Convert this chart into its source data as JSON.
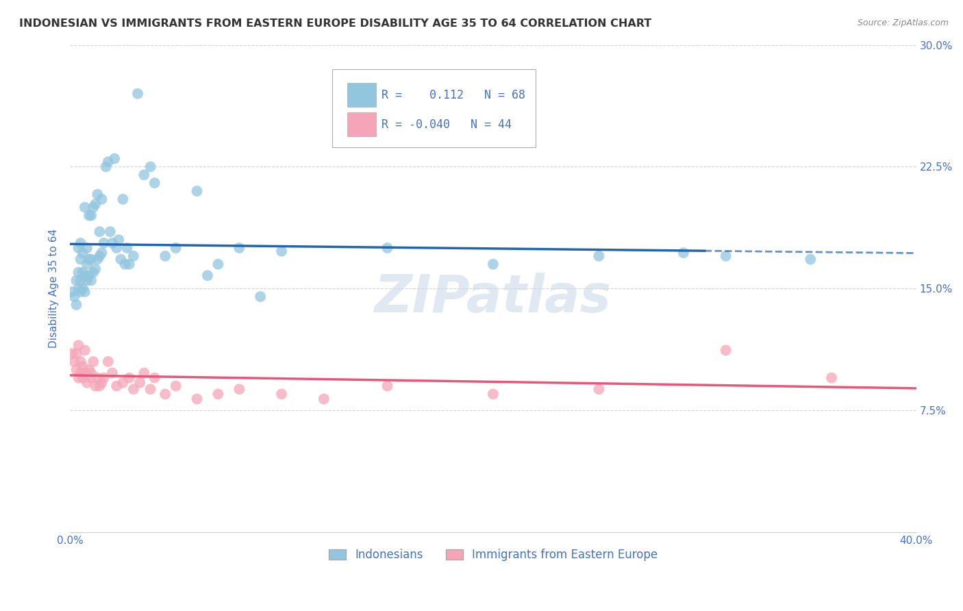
{
  "title": "INDONESIAN VS IMMIGRANTS FROM EASTERN EUROPE DISABILITY AGE 35 TO 64 CORRELATION CHART",
  "source": "Source: ZipAtlas.com",
  "ylabel": "Disability Age 35 to 64",
  "x_min": 0.0,
  "x_max": 0.4,
  "y_min": 0.0,
  "y_max": 0.3,
  "blue_R": 0.112,
  "blue_N": 68,
  "pink_R": -0.04,
  "pink_N": 44,
  "blue_color": "#92c5de",
  "pink_color": "#f4a6b8",
  "blue_line_color": "#2166ac",
  "pink_line_color": "#e8567a",
  "legend_label_blue": "Indonesians",
  "legend_label_pink": "Immigrants from Eastern Europe",
  "blue_x": [
    0.001,
    0.002,
    0.003,
    0.003,
    0.004,
    0.004,
    0.004,
    0.005,
    0.005,
    0.005,
    0.005,
    0.006,
    0.006,
    0.006,
    0.007,
    0.007,
    0.007,
    0.008,
    0.008,
    0.008,
    0.009,
    0.009,
    0.009,
    0.01,
    0.01,
    0.01,
    0.011,
    0.011,
    0.012,
    0.012,
    0.013,
    0.013,
    0.014,
    0.014,
    0.015,
    0.015,
    0.016,
    0.017,
    0.018,
    0.019,
    0.02,
    0.021,
    0.022,
    0.023,
    0.024,
    0.025,
    0.026,
    0.027,
    0.028,
    0.03,
    0.032,
    0.035,
    0.038,
    0.04,
    0.045,
    0.05,
    0.06,
    0.065,
    0.07,
    0.08,
    0.09,
    0.1,
    0.15,
    0.2,
    0.25,
    0.29,
    0.31,
    0.35
  ],
  "blue_y": [
    0.148,
    0.145,
    0.14,
    0.155,
    0.15,
    0.16,
    0.175,
    0.148,
    0.155,
    0.168,
    0.178,
    0.15,
    0.16,
    0.172,
    0.148,
    0.158,
    0.2,
    0.155,
    0.165,
    0.175,
    0.158,
    0.168,
    0.195,
    0.155,
    0.168,
    0.195,
    0.16,
    0.2,
    0.162,
    0.202,
    0.168,
    0.208,
    0.17,
    0.185,
    0.172,
    0.205,
    0.178,
    0.225,
    0.228,
    0.185,
    0.178,
    0.23,
    0.175,
    0.18,
    0.168,
    0.205,
    0.165,
    0.175,
    0.165,
    0.17,
    0.27,
    0.22,
    0.225,
    0.215,
    0.17,
    0.175,
    0.21,
    0.158,
    0.165,
    0.175,
    0.145,
    0.173,
    0.175,
    0.165,
    0.17,
    0.172,
    0.17,
    0.168
  ],
  "pink_x": [
    0.001,
    0.002,
    0.003,
    0.003,
    0.004,
    0.004,
    0.005,
    0.005,
    0.006,
    0.006,
    0.007,
    0.007,
    0.008,
    0.009,
    0.01,
    0.01,
    0.011,
    0.012,
    0.013,
    0.014,
    0.015,
    0.016,
    0.018,
    0.02,
    0.022,
    0.025,
    0.028,
    0.03,
    0.033,
    0.035,
    0.038,
    0.04,
    0.045,
    0.05,
    0.06,
    0.07,
    0.08,
    0.1,
    0.12,
    0.15,
    0.2,
    0.25,
    0.31,
    0.36
  ],
  "pink_y": [
    0.11,
    0.105,
    0.11,
    0.1,
    0.115,
    0.095,
    0.105,
    0.098,
    0.102,
    0.095,
    0.098,
    0.112,
    0.092,
    0.1,
    0.095,
    0.098,
    0.105,
    0.09,
    0.095,
    0.09,
    0.092,
    0.095,
    0.105,
    0.098,
    0.09,
    0.092,
    0.095,
    0.088,
    0.092,
    0.098,
    0.088,
    0.095,
    0.085,
    0.09,
    0.082,
    0.085,
    0.088,
    0.085,
    0.082,
    0.09,
    0.085,
    0.088,
    0.112,
    0.095
  ],
  "watermark": "ZIPatlas",
  "background_color": "#ffffff",
  "grid_color": "#d0d0d0",
  "title_color": "#333333",
  "axis_color": "#4472c4",
  "blue_line_x_solid_end": 0.3,
  "blue_line_x_dashed_start": 0.3,
  "blue_line_x_dashed_end": 0.4
}
